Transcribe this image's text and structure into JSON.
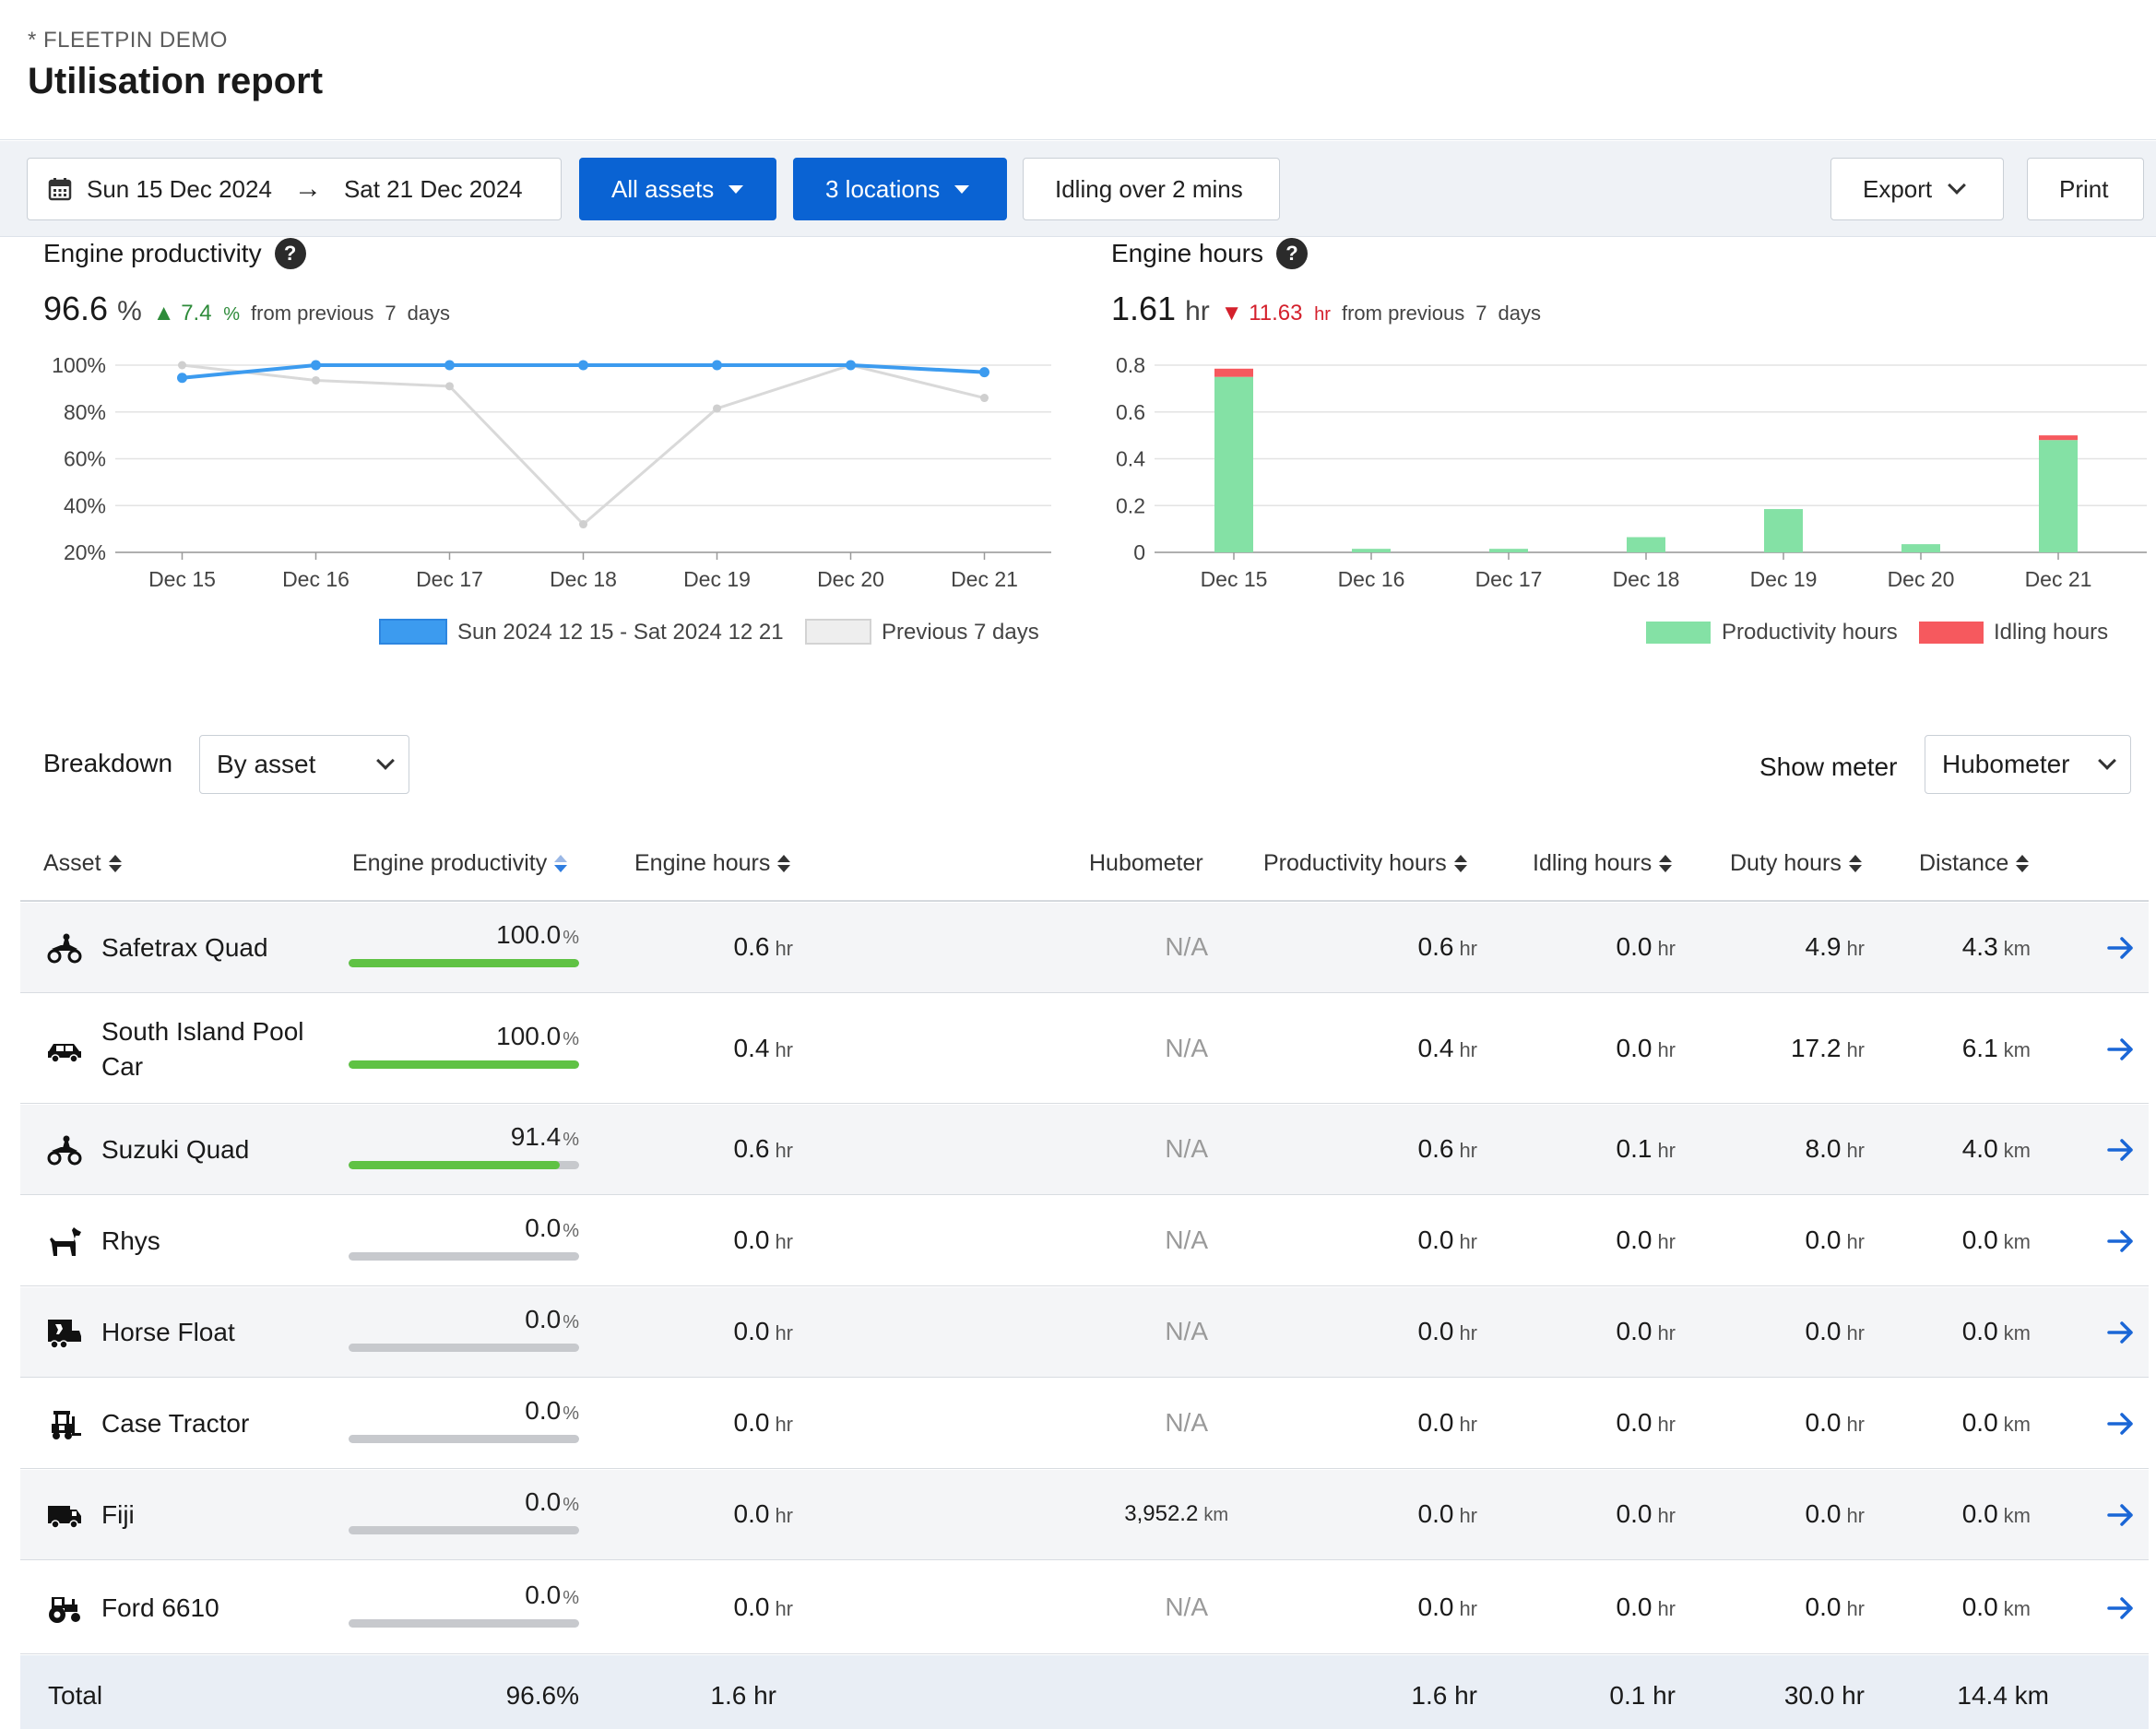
{
  "header": {
    "org": "* FLEETPIN DEMO",
    "title": "Utilisation report"
  },
  "toolbar": {
    "start_date": "Sun 15 Dec 2024",
    "end_date": "Sat 21 Dec 2024",
    "assets_label": "All assets",
    "locations_label": "3 locations",
    "idling_label": "Idling over 2 mins",
    "export_label": "Export",
    "print_label": "Print",
    "icons": {
      "calendar": "calendar-icon",
      "arrow": "arrow-right-icon"
    }
  },
  "productivity": {
    "title": "Engine productivity",
    "value": "96.6",
    "unit": "%",
    "change": "7.4",
    "change_unit": "%",
    "from_text": "from previous",
    "days": "7",
    "days_label": "days",
    "chart_data": {
      "type": "line",
      "categories": [
        "Dec 15",
        "Dec 16",
        "Dec 17",
        "Dec 18",
        "Dec 19",
        "Dec 20",
        "Dec 21"
      ],
      "yticks": [
        "100%",
        "80%",
        "60%",
        "40%",
        "20%"
      ],
      "ylim": [
        20,
        100
      ],
      "series": [
        {
          "name": "Sun 2024 12 15 - Sat 2024 12 21",
          "color": "#3c9bef",
          "values": [
            94.6,
            100,
            100,
            100,
            100,
            100,
            97
          ]
        },
        {
          "name": "Previous 7 days",
          "color": "#d9d9d9",
          "values": [
            100,
            93.5,
            91,
            32,
            81.5,
            100,
            86
          ]
        }
      ],
      "legend": "bottom-right",
      "grid": true
    }
  },
  "hours": {
    "title": "Engine hours",
    "value": "1.61",
    "unit": "hr",
    "change": "11.63",
    "change_unit": "hr",
    "from_text": "from previous",
    "days": "7",
    "days_label": "days",
    "chart_data": {
      "type": "bar",
      "stacked": true,
      "categories": [
        "Dec 15",
        "Dec 16",
        "Dec 17",
        "Dec 18",
        "Dec 19",
        "Dec 20",
        "Dec 21"
      ],
      "yticks": [
        "0.8",
        "0.6",
        "0.4",
        "0.2",
        "0"
      ],
      "ylim": [
        0,
        0.8
      ],
      "series": [
        {
          "name": "Productivity hours",
          "color": "#84e1a5",
          "values": [
            0.75,
            0.015,
            0.015,
            0.065,
            0.185,
            0.035,
            0.48
          ]
        },
        {
          "name": "Idling hours",
          "color": "#f6595e",
          "values": [
            0.035,
            0,
            0,
            0,
            0,
            0,
            0.02
          ]
        }
      ],
      "legend": "bottom-right",
      "grid": true
    }
  },
  "breakdown": {
    "label": "Breakdown",
    "selected": "By asset",
    "meter_label": "Show meter",
    "meter_selected": "Hubometer"
  },
  "table": {
    "headers": {
      "asset": "Asset",
      "productivity": "Engine productivity",
      "engine_hours": "Engine hours",
      "hubometer": "Hubometer",
      "prod_hours": "Productivity hours",
      "idle_hours": "Idling hours",
      "duty_hours": "Duty hours",
      "distance": "Distance"
    },
    "rows": [
      {
        "icon": "quad-bike-icon",
        "name": "Safetrax Quad",
        "productivity": "100.0",
        "fill": 100,
        "engine_hours": "0.6",
        "hubometer": "N/A",
        "hub_unit": "",
        "prod_hours": "0.6",
        "idle_hours": "0.0",
        "duty_hours": "4.9",
        "distance": "4.3"
      },
      {
        "icon": "car-icon",
        "name": "South Island Pool Car",
        "productivity": "100.0",
        "fill": 100,
        "engine_hours": "0.4",
        "hubometer": "N/A",
        "hub_unit": "",
        "prod_hours": "0.4",
        "idle_hours": "0.0",
        "duty_hours": "17.2",
        "distance": "6.1"
      },
      {
        "icon": "quad-bike-icon",
        "name": "Suzuki Quad",
        "productivity": "91.4",
        "fill": 91.4,
        "engine_hours": "0.6",
        "hubometer": "N/A",
        "hub_unit": "",
        "prod_hours": "0.6",
        "idle_hours": "0.1",
        "duty_hours": "8.0",
        "distance": "4.0"
      },
      {
        "icon": "dog-icon",
        "name": "Rhys",
        "productivity": "0.0",
        "fill": 0,
        "engine_hours": "0.0",
        "hubometer": "N/A",
        "hub_unit": "",
        "prod_hours": "0.0",
        "idle_hours": "0.0",
        "duty_hours": "0.0",
        "distance": "0.0"
      },
      {
        "icon": "horse-float-icon",
        "name": "Horse Float",
        "productivity": "0.0",
        "fill": 0,
        "engine_hours": "0.0",
        "hubometer": "N/A",
        "hub_unit": "",
        "prod_hours": "0.0",
        "idle_hours": "0.0",
        "duty_hours": "0.0",
        "distance": "0.0"
      },
      {
        "icon": "forklift-icon",
        "name": "Case Tractor",
        "productivity": "0.0",
        "fill": 0,
        "engine_hours": "0.0",
        "hubometer": "N/A",
        "hub_unit": "",
        "prod_hours": "0.0",
        "idle_hours": "0.0",
        "duty_hours": "0.0",
        "distance": "0.0"
      },
      {
        "icon": "van-icon",
        "name": "Fiji",
        "productivity": "0.0",
        "fill": 0,
        "engine_hours": "0.0",
        "hubometer": "3,952.2",
        "hub_unit": "km",
        "prod_hours": "0.0",
        "idle_hours": "0.0",
        "duty_hours": "0.0",
        "distance": "0.0"
      },
      {
        "icon": "tractor-icon",
        "name": "Ford 6610",
        "productivity": "0.0",
        "fill": 0,
        "engine_hours": "0.0",
        "hubometer": "N/A",
        "hub_unit": "",
        "prod_hours": "0.0",
        "idle_hours": "0.0",
        "duty_hours": "0.0",
        "distance": "0.0"
      }
    ],
    "units": {
      "percent": "%",
      "hr": "hr",
      "km": "km"
    },
    "total": {
      "label": "Total",
      "productivity": "96.6%",
      "engine_hours": "1.6 hr",
      "prod_hours": "1.6 hr",
      "idle_hours": "0.1 hr",
      "duty_hours": "30.0 hr",
      "distance": "14.4 km"
    }
  }
}
